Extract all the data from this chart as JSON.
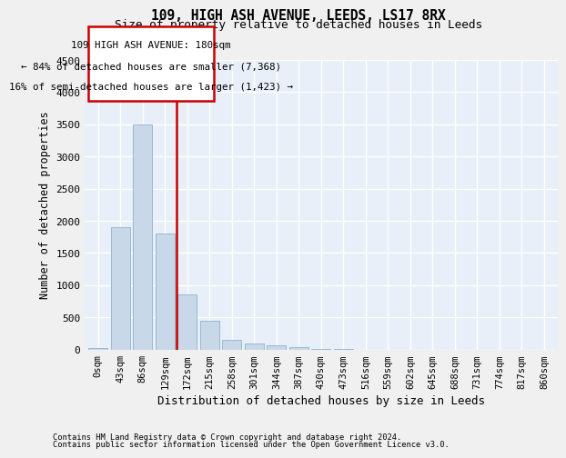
{
  "title": "109, HIGH ASH AVENUE, LEEDS, LS17 8RX",
  "subtitle": "Size of property relative to detached houses in Leeds",
  "xlabel": "Distribution of detached houses by size in Leeds",
  "ylabel": "Number of detached properties",
  "footnote1": "Contains HM Land Registry data © Crown copyright and database right 2024.",
  "footnote2": "Contains public sector information licensed under the Open Government Licence v3.0.",
  "annotation_line1": "109 HIGH ASH AVENUE: 180sqm",
  "annotation_line2": "← 84% of detached houses are smaller (7,368)",
  "annotation_line3": "16% of semi-detached houses are larger (1,423) →",
  "categories": [
    "0sqm",
    "43sqm",
    "86sqm",
    "129sqm",
    "172sqm",
    "215sqm",
    "258sqm",
    "301sqm",
    "344sqm",
    "387sqm",
    "430sqm",
    "473sqm",
    "516sqm",
    "559sqm",
    "602sqm",
    "645sqm",
    "688sqm",
    "731sqm",
    "774sqm",
    "817sqm",
    "860sqm"
  ],
  "values": [
    30,
    1900,
    3500,
    1800,
    850,
    450,
    150,
    90,
    60,
    40,
    15,
    5,
    2,
    1,
    0,
    0,
    0,
    0,
    0,
    0,
    0
  ],
  "bar_color": "#c8d8e8",
  "bar_edge_color": "#8ab4cc",
  "vline_color": "#cc0000",
  "vline_x": 3.5,
  "ylim": [
    0,
    4500
  ],
  "yticks": [
    0,
    500,
    1000,
    1500,
    2000,
    2500,
    3000,
    3500,
    4000,
    4500
  ],
  "bg_color": "#e8eff8",
  "grid_color": "#ffffff",
  "fig_bg": "#f0f0f0"
}
